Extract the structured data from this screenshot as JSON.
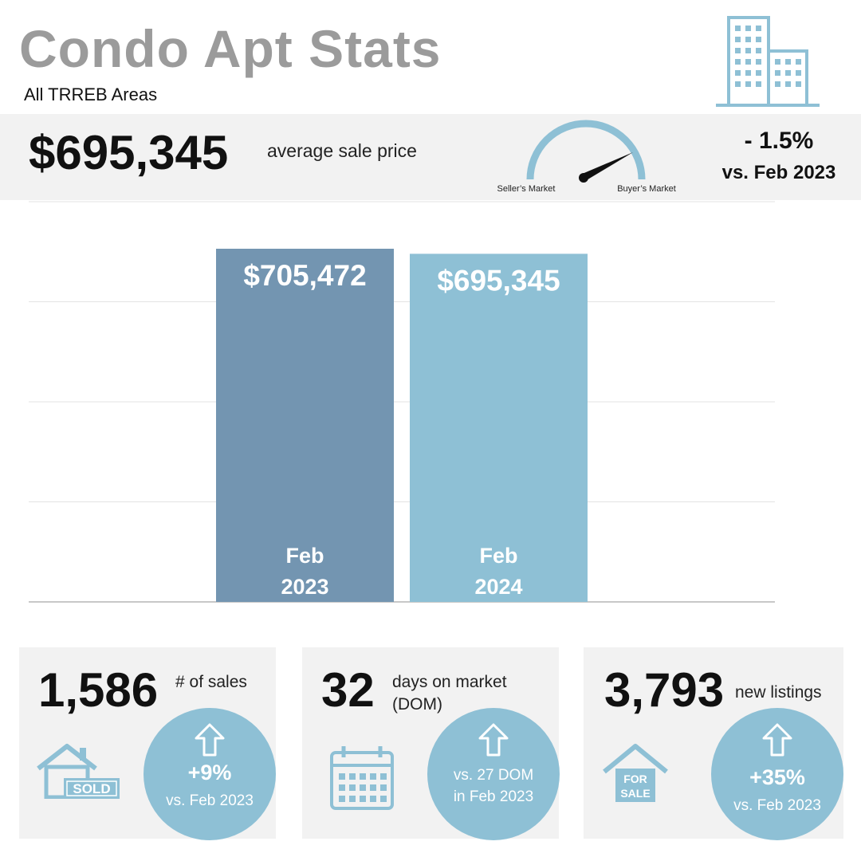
{
  "header": {
    "title": "Condo Apt Stats",
    "subtitle": "All TRREB Areas",
    "icon": "building-icon"
  },
  "summary": {
    "average_price": "$695,345",
    "average_price_label": "average sale price",
    "gauge": {
      "left_label": "Seller’s Market",
      "right_label": "Buyer’s Market",
      "needle_position": "buyer-leaning",
      "icon": "market-gauge-icon"
    },
    "change_pct": "- 1.5%",
    "change_vs": "vs. Feb 2023"
  },
  "chart_data": {
    "type": "bar",
    "categories": [
      "Feb 2023",
      "Feb 2024"
    ],
    "category_lines": [
      [
        "Feb",
        "2023"
      ],
      [
        "Feb",
        "2024"
      ]
    ],
    "values": [
      705472,
      695345
    ],
    "value_labels": [
      "$705,472",
      "$695,345"
    ],
    "bar_colors": [
      "#7395b1",
      "#8ec0d5"
    ],
    "ylim": [
      0,
      705472
    ],
    "grid": true
  },
  "cards": [
    {
      "number": "1,586",
      "label": "# of sales",
      "icon": "sold-house-icon",
      "icon_text": "SOLD",
      "arrow": "up-arrow-icon",
      "change": "+9%",
      "vs": "vs. Feb 2023"
    },
    {
      "number": "32",
      "label_lines": [
        "days on market",
        "(DOM)"
      ],
      "icon": "calendar-icon",
      "arrow": "up-arrow-icon",
      "vs_lines": [
        "vs. 27 DOM",
        "in Feb 2023"
      ]
    },
    {
      "number": "3,793",
      "label": "new listings",
      "icon": "for-sale-house-icon",
      "icon_text": [
        "FOR",
        "SALE"
      ],
      "arrow": "up-arrow-icon",
      "change": "+35%",
      "vs": "vs. Feb 2023"
    }
  ],
  "colors": {
    "accent": "#8ec0d5",
    "bar_2023": "#7395b1",
    "bar_2024": "#8ec0d5",
    "title_gray": "#9b9b9b",
    "band": "#f2f2f2"
  }
}
